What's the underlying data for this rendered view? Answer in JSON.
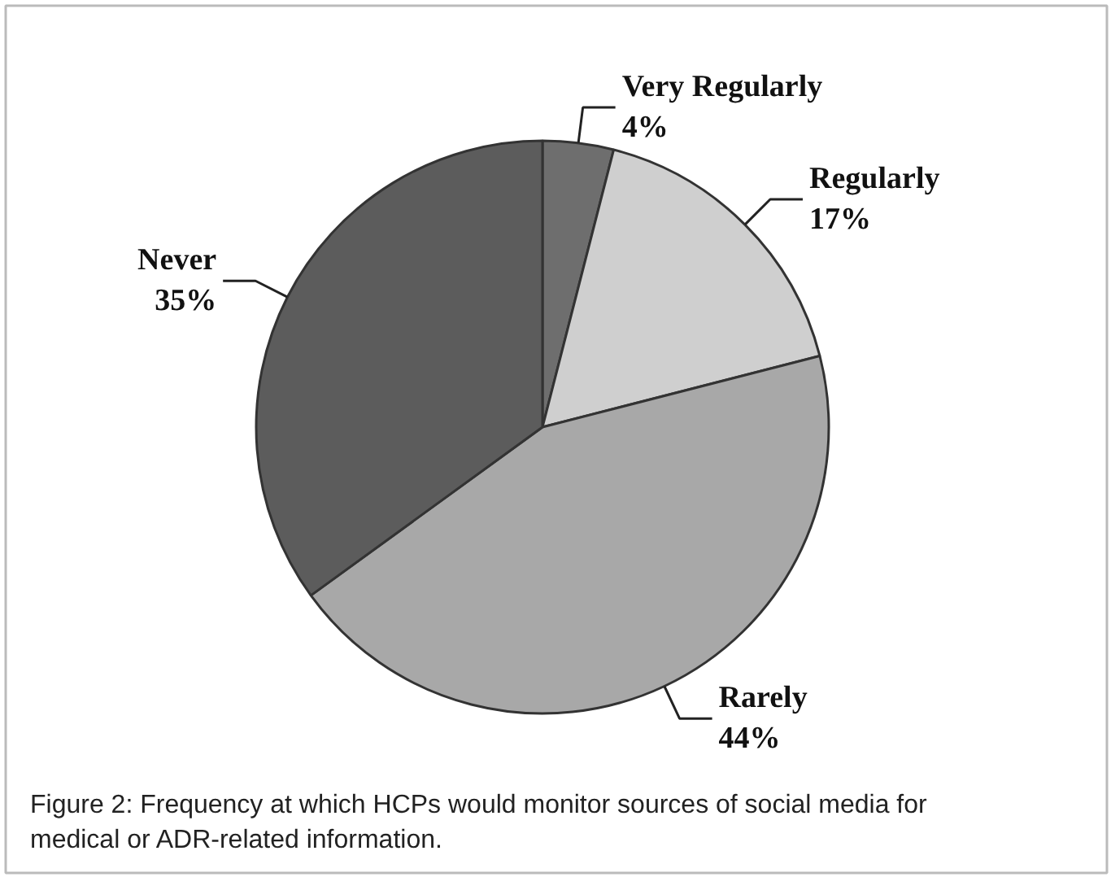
{
  "chart_data": {
    "type": "pie",
    "categories": [
      "Very Regularly",
      "Regularly",
      "Rarely",
      "Never"
    ],
    "values": [
      4,
      17,
      44,
      35
    ],
    "colors": [
      "#6e6e6e",
      "#cfcfcf",
      "#a8a8a8",
      "#5c5c5c"
    ],
    "value_labels": [
      "4%",
      "17%",
      "44%",
      "35%"
    ],
    "annotations": [
      "Figure 2: Frequency at which HCPs would monitor sources of social media for medical or ADR-related information."
    ]
  }
}
